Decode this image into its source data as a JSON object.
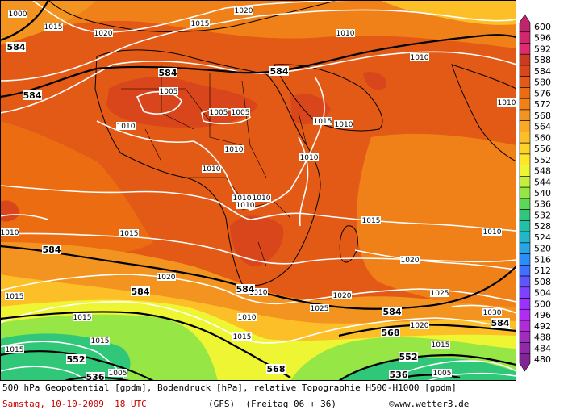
{
  "map": {
    "pressure_isobars_hpa": [
      {
        "label": "1000"
      },
      {
        "label": "1005"
      },
      {
        "label": "1010"
      },
      {
        "label": "1015"
      },
      {
        "label": "1020"
      },
      {
        "label": "1025"
      },
      {
        "label": "1030"
      }
    ],
    "isobar_labels": [
      "1000",
      "1015",
      "1020",
      "1015",
      "1020",
      "1010",
      "1010",
      "1005",
      "1005",
      "1005",
      "1010",
      "1015",
      "1010",
      "1010",
      "1010",
      "1010",
      "1010",
      "1010",
      "1010",
      "1010",
      "1015",
      "1015",
      "1010",
      "1020",
      "1015",
      "1020",
      "1025",
      "1020",
      "1025",
      "1030",
      "1015",
      "1015",
      "1015",
      "1010",
      "1015",
      "1010",
      "1015",
      "1005",
      "1005",
      "1020",
      "1010"
    ],
    "geopotential_labels": [
      "584",
      "584",
      "584",
      "584",
      "584",
      "584",
      "584",
      "584",
      "584",
      "568",
      "552",
      "568",
      "536",
      "536",
      "552"
    ]
  },
  "legend": {
    "colors": [
      {
        "value": "600",
        "color": "#c0246a"
      },
      {
        "value": "596",
        "color": "#d2266e"
      },
      {
        "value": "592",
        "color": "#e02a70"
      },
      {
        "value": "588",
        "color": "#cc3a22"
      },
      {
        "value": "584",
        "color": "#d9461c"
      },
      {
        "value": "580",
        "color": "#e35a16"
      },
      {
        "value": "576",
        "color": "#ec6c12"
      },
      {
        "value": "572",
        "color": "#f08018"
      },
      {
        "value": "568",
        "color": "#f49420"
      },
      {
        "value": "564",
        "color": "#f8aa24"
      },
      {
        "value": "560",
        "color": "#fcbf28"
      },
      {
        "value": "556",
        "color": "#ffd22a"
      },
      {
        "value": "552",
        "color": "#ffe62a"
      },
      {
        "value": "548",
        "color": "#eef532"
      },
      {
        "value": "544",
        "color": "#c4f03c"
      },
      {
        "value": "540",
        "color": "#96e646"
      },
      {
        "value": "536",
        "color": "#5cd858"
      },
      {
        "value": "532",
        "color": "#30c878"
      },
      {
        "value": "528",
        "color": "#22c0a4"
      },
      {
        "value": "524",
        "color": "#24b6c8"
      },
      {
        "value": "520",
        "color": "#26a6e6"
      },
      {
        "value": "516",
        "color": "#2a8ef8"
      },
      {
        "value": "512",
        "color": "#4070ff"
      },
      {
        "value": "508",
        "color": "#6054ff"
      },
      {
        "value": "504",
        "color": "#8040ff"
      },
      {
        "value": "500",
        "color": "#9c30ff"
      },
      {
        "value": "496",
        "color": "#b02cf0"
      },
      {
        "value": "492",
        "color": "#b02cd8"
      },
      {
        "value": "488",
        "color": "#a02cbe"
      },
      {
        "value": "484",
        "color": "#9028a8"
      },
      {
        "value": "480",
        "color": "#802496"
      }
    ]
  },
  "footer": {
    "line1": "500 hPa Geopotential [gpdm], Bodendruck [hPa], relative Topographie H500-H1000 [gpdm]",
    "date": "Samstag, 10-10-2009  18 UTC",
    "model": "(GFS)  (Freitag 06 + 36)",
    "credit": "©www.wetter3.de"
  }
}
